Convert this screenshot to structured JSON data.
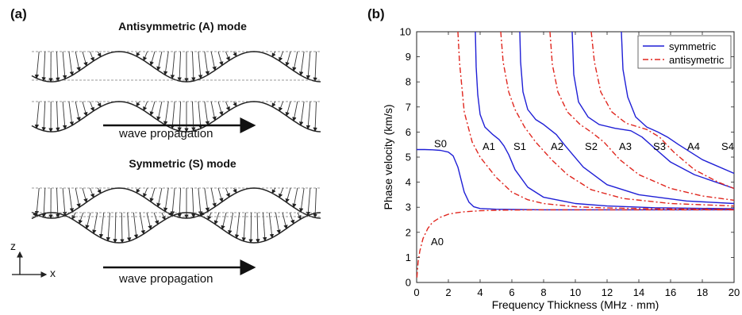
{
  "panel_a": {
    "label": "(a)",
    "antisymmetric_title": "Antisymmetric (A) mode",
    "symmetric_title": "Symmetric (S) mode",
    "propagation_label": "wave propagation",
    "axis_z": "z",
    "axis_x": "x"
  },
  "panel_b": {
    "label": "(b)"
  },
  "chart_data": {
    "type": "line",
    "title": "",
    "xlabel": "Frequency Thickness (MHz · mm)",
    "ylabel": "Phase velocity (km/s)",
    "xlim": [
      0,
      20
    ],
    "ylim": [
      0,
      10
    ],
    "xticks": [
      0,
      2,
      4,
      6,
      8,
      10,
      12,
      14,
      16,
      18,
      20
    ],
    "yticks": [
      0,
      1,
      2,
      3,
      4,
      5,
      6,
      7,
      8,
      9,
      10
    ],
    "grid": false,
    "legend_position": "top-right",
    "legend": [
      {
        "name": "symmetric",
        "color": "#1f1fd6",
        "style": "solid"
      },
      {
        "name": "antisymetric",
        "color": "#e0261e",
        "style": "dash-dot"
      }
    ],
    "series": [
      {
        "label": "S0",
        "kind": "symmetric",
        "x": [
          0,
          0.5,
          1,
          1.5,
          2,
          2.3,
          2.6,
          2.8,
          3,
          3.3,
          3.6,
          4,
          5,
          6,
          8,
          10,
          12,
          15,
          20
        ],
        "y": [
          5.3,
          5.3,
          5.29,
          5.27,
          5.2,
          5.05,
          4.6,
          4.1,
          3.6,
          3.2,
          3.02,
          2.95,
          2.92,
          2.91,
          2.9,
          2.9,
          2.9,
          2.9,
          2.9
        ]
      },
      {
        "label": "S1",
        "kind": "symmetric",
        "x": [
          3.7,
          3.75,
          3.85,
          4,
          4.3,
          4.8,
          5.2,
          5.5,
          5.8,
          6.2,
          7,
          8,
          10,
          12,
          15,
          20
        ],
        "y": [
          10,
          8.6,
          7.5,
          6.7,
          6.2,
          5.9,
          5.7,
          5.45,
          5.1,
          4.5,
          3.8,
          3.4,
          3.15,
          3.05,
          2.98,
          2.94
        ]
      },
      {
        "label": "S2",
        "kind": "symmetric",
        "x": [
          6.5,
          6.55,
          6.7,
          7,
          7.5,
          8,
          8.8,
          9.3,
          9.7,
          10.5,
          12,
          14,
          17,
          20
        ],
        "y": [
          10,
          8.8,
          7.6,
          6.9,
          6.5,
          6.3,
          5.9,
          5.5,
          5.2,
          4.6,
          3.9,
          3.5,
          3.25,
          3.15
        ]
      },
      {
        "label": "S3",
        "kind": "symmetric",
        "x": [
          9.8,
          9.9,
          10.2,
          10.8,
          11.5,
          12.5,
          13.5,
          14.2,
          15,
          16,
          17.5,
          20
        ],
        "y": [
          10,
          8.3,
          7.2,
          6.6,
          6.3,
          6.15,
          6.05,
          5.8,
          5.35,
          4.8,
          4.3,
          3.75
        ]
      },
      {
        "label": "S4",
        "kind": "symmetric",
        "x": [
          12.9,
          13,
          13.3,
          13.8,
          14.5,
          15.2,
          15.8,
          16.5,
          18,
          20
        ],
        "y": [
          10,
          8.5,
          7.4,
          6.6,
          6.2,
          6.0,
          5.8,
          5.5,
          4.9,
          4.35
        ]
      },
      {
        "label": "A0",
        "kind": "antisymmetric",
        "x": [
          0.02,
          0.05,
          0.1,
          0.2,
          0.4,
          0.7,
          1,
          1.5,
          2,
          2.5,
          3,
          4,
          5,
          6,
          8,
          10,
          15,
          20
        ],
        "y": [
          0.2,
          0.5,
          0.85,
          1.25,
          1.75,
          2.15,
          2.4,
          2.6,
          2.72,
          2.78,
          2.82,
          2.86,
          2.88,
          2.89,
          2.9,
          2.9,
          2.9,
          2.9
        ]
      },
      {
        "label": "A1",
        "kind": "antisymmetric",
        "x": [
          2.6,
          2.7,
          3,
          3.5,
          4,
          4.5,
          5,
          6,
          7,
          8,
          10,
          12,
          15,
          20
        ],
        "y": [
          10,
          8.8,
          6.8,
          5.6,
          5.0,
          4.6,
          4.2,
          3.6,
          3.3,
          3.15,
          3.02,
          2.97,
          2.94,
          2.92
        ]
      },
      {
        "label": "A2",
        "kind": "antisymmetric",
        "x": [
          5.3,
          5.45,
          5.8,
          6.2,
          6.8,
          7.5,
          8.5,
          9.5,
          11,
          13,
          16,
          20
        ],
        "y": [
          10,
          8.8,
          7.6,
          6.9,
          6.2,
          5.6,
          4.9,
          4.3,
          3.7,
          3.35,
          3.15,
          3.05
        ]
      },
      {
        "label": "A3",
        "kind": "antisymmetric",
        "x": [
          8.4,
          8.55,
          8.9,
          9.5,
          10.3,
          11,
          11.8,
          12.8,
          14,
          16,
          18,
          20
        ],
        "y": [
          10,
          8.7,
          7.6,
          6.8,
          6.3,
          6.0,
          5.6,
          4.9,
          4.3,
          3.75,
          3.45,
          3.28
        ]
      },
      {
        "label": "A4",
        "kind": "antisymmetric",
        "x": [
          11,
          11.2,
          11.6,
          12.3,
          13.2,
          14.5,
          15.3,
          16.2,
          17.5,
          19,
          20
        ],
        "y": [
          10,
          8.8,
          7.6,
          6.8,
          6.35,
          6.1,
          5.8,
          5.2,
          4.5,
          4.0,
          3.75
        ]
      }
    ],
    "curve_labels": [
      {
        "text": "S0",
        "x": 1.5,
        "y": 5.55
      },
      {
        "text": "A1",
        "x": 4.55,
        "y": 5.45
      },
      {
        "text": "S1",
        "x": 6.5,
        "y": 5.45
      },
      {
        "text": "A2",
        "x": 8.85,
        "y": 5.45
      },
      {
        "text": "S2",
        "x": 11.0,
        "y": 5.45
      },
      {
        "text": "A3",
        "x": 13.15,
        "y": 5.45
      },
      {
        "text": "S3",
        "x": 15.3,
        "y": 5.45
      },
      {
        "text": "A4",
        "x": 17.45,
        "y": 5.45
      },
      {
        "text": "S4",
        "x": 19.6,
        "y": 5.45
      },
      {
        "text": "A0",
        "x": 1.3,
        "y": 1.65
      }
    ]
  }
}
